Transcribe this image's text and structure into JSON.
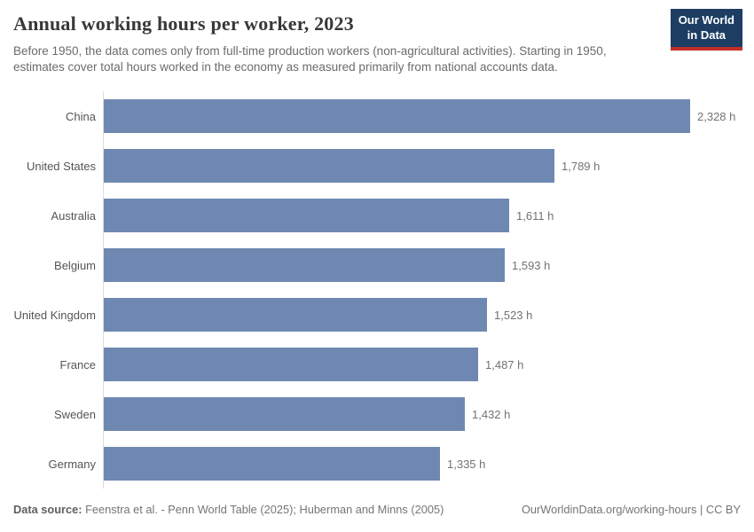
{
  "header": {
    "title": "Annual working hours per worker, 2023",
    "subtitle": "Before 1950, the data comes only from full-time production workers (non-agricultural activities). Starting in 1950, estimates cover total hours worked in the economy as measured primarily from national accounts data."
  },
  "logo": {
    "line1": "Our World",
    "line2": "in Data",
    "bg_color": "#1d3d63",
    "accent_color": "#c52e26"
  },
  "chart_data": {
    "type": "bar",
    "orientation": "horizontal",
    "title": "Annual working hours per worker, 2023",
    "categories": [
      "China",
      "United States",
      "Australia",
      "Belgium",
      "United Kingdom",
      "France",
      "Sweden",
      "Germany"
    ],
    "values": [
      2328,
      1789,
      1611,
      1593,
      1523,
      1487,
      1432,
      1335
    ],
    "value_labels": [
      "2,328 h",
      "1,789 h",
      "1,611 h",
      "1,593 h",
      "1,523 h",
      "1,487 h",
      "1,432 h",
      "1,335 h"
    ],
    "unit": "h",
    "xlim": [
      0,
      2328
    ],
    "grid": false,
    "legend": "none",
    "bar_color": "#6f88b2"
  },
  "footer": {
    "source_label": "Data source:",
    "source_text": " Feenstra et al. - Penn World Table (2025); Huberman and Minns (2005)",
    "credit": "OurWorldinData.org/working-hours | CC BY"
  }
}
